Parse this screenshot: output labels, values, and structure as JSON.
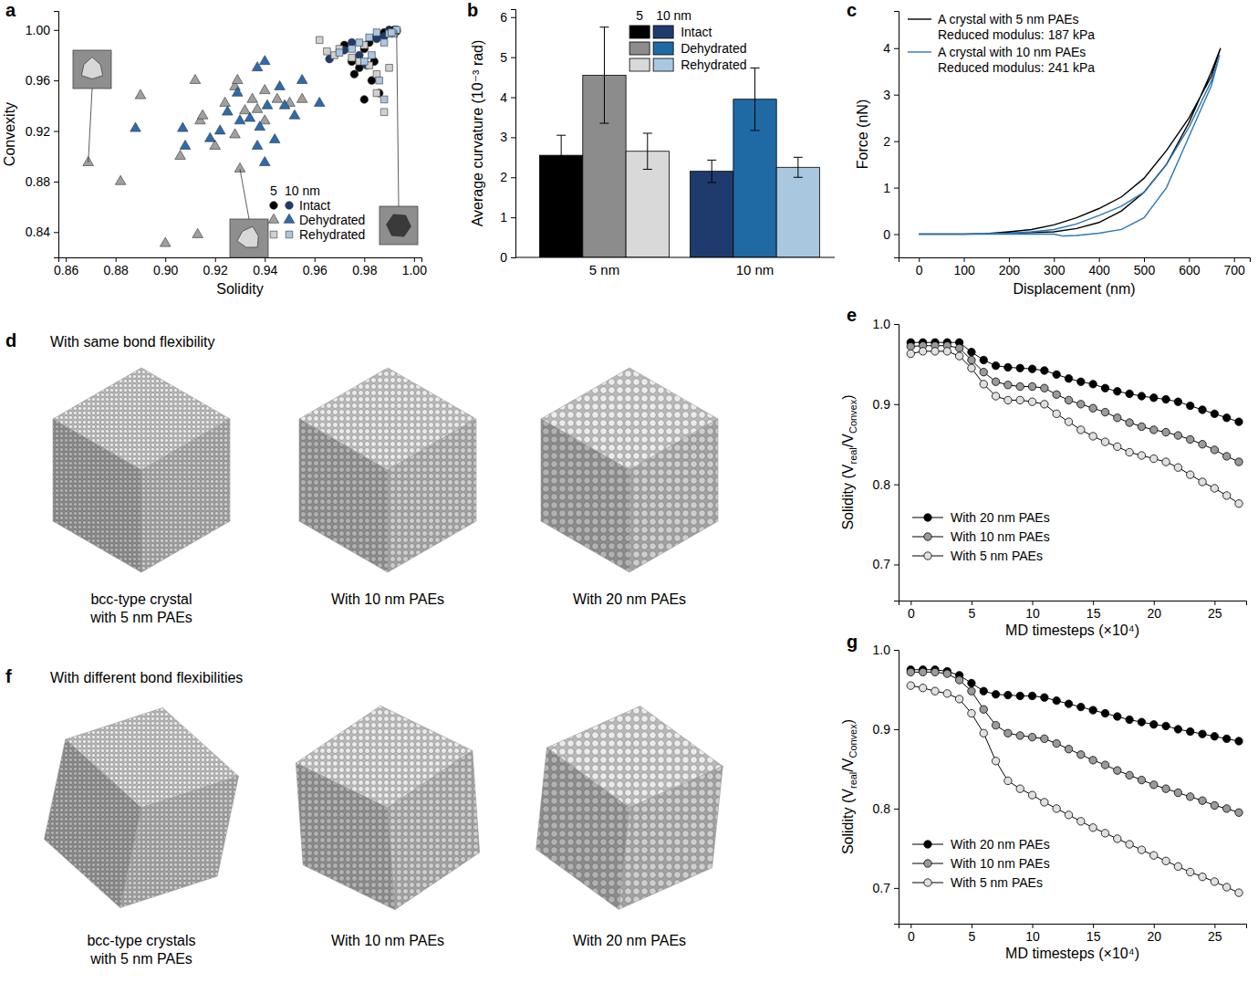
{
  "chart_data": [
    {
      "panel": "a",
      "type": "scatter",
      "x_label": "Solidity",
      "y_label": "Convexity",
      "xlim": [
        0.857,
        1.003
      ],
      "xticks": [
        0.86,
        0.88,
        {
          "value": 0.9,
          "label": "0.90"
        },
        0.92,
        0.94,
        0.96,
        0.98,
        {
          "value": 1,
          "label": "1.00"
        }
      ],
      "ylim": [
        0.82,
        1.015
      ],
      "yticks": [
        0.84,
        0.88,
        0.92,
        0.96,
        {
          "value": 1,
          "label": "1.00"
        }
      ],
      "legend": "bottom-right",
      "legend_columns": [
        "5",
        "10 nm"
      ],
      "series": [
        {
          "name": "Intact",
          "color": "#000000",
          "marker": "circle",
          "x": [
            0.972,
            0.975,
            0.978,
            0.98,
            0.982,
            0.985,
            0.988,
            0.99,
            0.992,
            0.993,
            0.976,
            0.983,
            0.986,
            0.98,
            0.984
          ],
          "values": [
            0.988,
            0.975,
            0.97,
            0.985,
            0.99,
            0.995,
            0.998,
            1.0,
            1.0,
            0.999,
            0.965,
            0.96,
            0.95,
            0.945,
            0.975
          ]
        },
        {
          "name": "Intact",
          "color": "#1f3b6e",
          "marker": "circle",
          "x": [
            0.966,
            0.972,
            0.975,
            0.978,
            0.985,
            0.99,
            0.993,
            0.981,
            0.988
          ],
          "values": [
            0.977,
            0.984,
            0.99,
            0.98,
            0.993,
            0.999,
            1.0,
            0.972,
            0.995
          ]
        },
        {
          "name": "Dehydrated",
          "color": "#a0a0a0",
          "marker": "triangle",
          "x": [
            0.869,
            0.882,
            0.89,
            0.9,
            0.906,
            0.912,
            0.913,
            0.914,
            0.915,
            0.92,
            0.924,
            0.928,
            0.929,
            0.93,
            0.932,
            0.935,
            0.94,
            0.94,
            0.945,
            0.95,
            0.955,
            0.928,
            0.937
          ],
          "values": [
            0.895,
            0.88,
            0.948,
            0.831,
            0.9,
            0.96,
            0.838,
            0.928,
            0.932,
            0.908,
            0.942,
            0.955,
            0.96,
            0.89,
            0.936,
            0.945,
            0.928,
            0.952,
            0.945,
            0.942,
            0.945,
            0.917,
            0.937
          ]
        },
        {
          "name": "Dehydrated",
          "color": "#2b6cb0",
          "marker": "triangle",
          "x": [
            0.888,
            0.907,
            0.908,
            0.918,
            0.922,
            0.925,
            0.93,
            0.934,
            0.937,
            0.938,
            0.94,
            0.941,
            0.944,
            0.946,
            0.948,
            0.952,
            0.955,
            0.962,
            0.94,
            0.937,
            0.929
          ],
          "values": [
            0.922,
            0.922,
            0.908,
            0.914,
            0.92,
            0.935,
            0.928,
            0.93,
            0.97,
            0.923,
            0.975,
            0.94,
            0.913,
            0.955,
            0.94,
            0.932,
            0.96,
            0.942,
            0.895,
            0.908,
            0.95
          ]
        },
        {
          "name": "Rehydrated",
          "color": "#d0d0d0",
          "marker": "square",
          "x": [
            0.962,
            0.965,
            0.968,
            0.975,
            0.978,
            0.982,
            0.985,
            0.988,
            0.99,
            0.985,
            0.992,
            0.97,
            0.98
          ],
          "values": [
            0.992,
            0.983,
            0.98,
            0.978,
            0.975,
            0.972,
            0.95,
            0.935,
            0.97,
            0.965,
            0.997,
            0.985,
            0.988
          ]
        },
        {
          "name": "Rehydrated",
          "color": "#a9c7e3",
          "marker": "square",
          "x": [
            0.97,
            0.975,
            0.978,
            0.982,
            0.985,
            0.988,
            0.99,
            0.993,
            0.98,
            0.986,
            0.988,
            0.983,
            0.991
          ],
          "values": [
            0.982,
            0.985,
            0.99,
            0.994,
            0.998,
            0.99,
            0.997,
            1.0,
            0.975,
            0.96,
            0.945,
            0.98,
            0.998
          ]
        }
      ]
    },
    {
      "panel": "b",
      "type": "bar",
      "y_label": "Average curvature (10⁻³ rad)",
      "categories": [
        "5 nm",
        "10 nm"
      ],
      "ylim": [
        0,
        6.2
      ],
      "yticks": [
        0,
        1,
        2,
        3,
        4,
        5,
        6
      ],
      "legend": "top-right",
      "legend_columns": [
        "5",
        "10 nm"
      ],
      "series": [
        {
          "name": "Intact",
          "colors": [
            "#000000",
            "#1f3b6e"
          ],
          "values": [
            2.55,
            2.15
          ],
          "errors": [
            0.5,
            0.28
          ]
        },
        {
          "name": "Dehydrated",
          "colors": [
            "#8c8c8c",
            "#1f6aa5"
          ],
          "values": [
            4.55,
            3.95
          ],
          "errors": [
            1.2,
            0.78
          ]
        },
        {
          "name": "Rehydrated",
          "colors": [
            "#d9d9d9",
            "#a9c8e0"
          ],
          "values": [
            2.65,
            2.25
          ],
          "errors": [
            0.45,
            0.25
          ]
        }
      ]
    },
    {
      "panel": "c",
      "type": "line",
      "x_label": "Displacement (nm)",
      "y_label": "Force (nN)",
      "xlim": [
        -45,
        735
      ],
      "xticks": [
        0,
        100,
        200,
        300,
        400,
        500,
        600,
        700
      ],
      "ylim": [
        -0.5,
        4.8
      ],
      "yticks": [
        0,
        1,
        2,
        3,
        4
      ],
      "legend": "top-left",
      "annotations": [
        "Reduced modulus: 187 kPa",
        "Reduced modulus: 241 kPa"
      ],
      "series": [
        {
          "name": "A crystal with 5 nm PAEs",
          "color": "#000000",
          "x": [
            0,
            100,
            150,
            200,
            250,
            300,
            350,
            400,
            450,
            500,
            550,
            600,
            650,
            670,
            650,
            600,
            550,
            500,
            450,
            400,
            350,
            300,
            200,
            100,
            0
          ],
          "values": [
            0,
            0,
            0.01,
            0.05,
            0.1,
            0.2,
            0.35,
            0.55,
            0.8,
            1.2,
            1.8,
            2.5,
            3.4,
            4.0,
            3.5,
            2.4,
            1.5,
            0.9,
            0.5,
            0.25,
            0.12,
            0.05,
            0.02,
            0,
            0
          ]
        },
        {
          "name": "A crystal with 10 nm PAEs",
          "color": "#2a78b8",
          "x": [
            0,
            100,
            200,
            250,
            300,
            350,
            400,
            450,
            500,
            550,
            600,
            650,
            668,
            650,
            600,
            550,
            500,
            450,
            400,
            350,
            320,
            300,
            200,
            100,
            0
          ],
          "values": [
            0,
            0,
            0.02,
            0.05,
            0.1,
            0.22,
            0.4,
            0.6,
            0.9,
            1.5,
            2.3,
            3.3,
            3.85,
            3.2,
            2.1,
            1.0,
            0.35,
            0.1,
            0.02,
            -0.03,
            -0.04,
            0,
            0,
            0,
            0
          ]
        }
      ]
    },
    {
      "panel": "d",
      "type": "image",
      "title": "With same bond flexibility",
      "captions": [
        [
          "bcc-type crystal",
          "with 5 nm PAEs"
        ],
        [
          "With 10 nm PAEs"
        ],
        [
          "With 20 nm PAEs"
        ]
      ]
    },
    {
      "panel": "e",
      "type": "line",
      "x_label": [
        "MD timesteps (×10⁴)"
      ],
      "y_label": [
        "Solidity (V",
        "real",
        "/V",
        "Convex",
        ")"
      ],
      "xlim": [
        -1,
        27.6
      ],
      "xticks": [
        0,
        5,
        10,
        15,
        20,
        25
      ],
      "ylim": [
        0.655,
        1.0
      ],
      "yticks": [
        0.7,
        0.8,
        0.9,
        {
          "value": 1,
          "label": "1.0"
        }
      ],
      "legend": "bottom-left",
      "marker": "circle",
      "x": [
        0,
        1,
        2,
        3,
        4,
        5,
        6,
        7,
        8,
        9,
        10,
        11,
        12,
        13,
        14,
        15,
        16,
        17,
        18,
        19,
        20,
        21,
        22,
        23,
        24,
        25,
        26,
        27
      ],
      "series": [
        {
          "name": "With 20 nm PAEs",
          "color": "#000000",
          "values": [
            0.977,
            0.977,
            0.977,
            0.977,
            0.977,
            0.965,
            0.955,
            0.948,
            0.946,
            0.945,
            0.944,
            0.942,
            0.937,
            0.932,
            0.928,
            0.925,
            0.92,
            0.916,
            0.913,
            0.91,
            0.908,
            0.906,
            0.903,
            0.898,
            0.893,
            0.888,
            0.883,
            0.878
          ]
        },
        {
          "name": "With 10 nm PAEs",
          "color": "#9a9a9a",
          "values": [
            0.972,
            0.973,
            0.973,
            0.973,
            0.97,
            0.955,
            0.94,
            0.928,
            0.924,
            0.922,
            0.922,
            0.92,
            0.912,
            0.905,
            0.9,
            0.895,
            0.89,
            0.883,
            0.877,
            0.872,
            0.868,
            0.865,
            0.861,
            0.856,
            0.85,
            0.843,
            0.835,
            0.828
          ]
        },
        {
          "name": "With 5 nm PAEs",
          "color": "#e0e0e0",
          "values": [
            0.963,
            0.966,
            0.966,
            0.966,
            0.96,
            0.945,
            0.925,
            0.91,
            0.905,
            0.905,
            0.903,
            0.9,
            0.888,
            0.878,
            0.868,
            0.86,
            0.853,
            0.847,
            0.84,
            0.836,
            0.832,
            0.828,
            0.821,
            0.812,
            0.803,
            0.795,
            0.786,
            0.776
          ]
        }
      ]
    },
    {
      "panel": "f",
      "type": "image",
      "title": "With different bond flexibilities",
      "captions": [
        [
          "bcc-type crystals",
          "with 5 nm PAEs"
        ],
        [
          "With 10 nm PAEs"
        ],
        [
          "With 20 nm PAEs"
        ]
      ]
    },
    {
      "panel": "g",
      "type": "line",
      "x_label": [
        "MD timesteps (×10⁴)"
      ],
      "y_label": [
        "Solidity (V",
        "real",
        "/V",
        "Convex",
        ")"
      ],
      "xlim": [
        -1,
        27.6
      ],
      "xticks": [
        0,
        5,
        10,
        15,
        20,
        25
      ],
      "ylim": [
        0.655,
        1.0
      ],
      "yticks": [
        0.7,
        0.8,
        0.9,
        {
          "value": 1,
          "label": "1.0"
        }
      ],
      "legend": "bottom-left",
      "marker": "circle",
      "x": [
        0,
        1,
        2,
        3,
        4,
        5,
        6,
        7,
        8,
        9,
        10,
        11,
        12,
        13,
        14,
        15,
        16,
        17,
        18,
        19,
        20,
        21,
        22,
        23,
        24,
        25,
        26,
        27
      ],
      "series": [
        {
          "name": "With 20 nm PAEs",
          "color": "#000000",
          "values": [
            0.975,
            0.975,
            0.975,
            0.973,
            0.968,
            0.958,
            0.948,
            0.944,
            0.943,
            0.942,
            0.942,
            0.94,
            0.936,
            0.932,
            0.928,
            0.924,
            0.92,
            0.916,
            0.912,
            0.909,
            0.906,
            0.904,
            0.9,
            0.897,
            0.894,
            0.891,
            0.888,
            0.885
          ]
        },
        {
          "name": "With 10 nm PAEs",
          "color": "#9a9a9a",
          "values": [
            0.972,
            0.972,
            0.972,
            0.97,
            0.962,
            0.948,
            0.925,
            0.905,
            0.895,
            0.892,
            0.89,
            0.888,
            0.882,
            0.875,
            0.868,
            0.861,
            0.855,
            0.848,
            0.842,
            0.836,
            0.83,
            0.825,
            0.82,
            0.815,
            0.81,
            0.804,
            0.8,
            0.795
          ]
        },
        {
          "name": "With 5 nm PAEs",
          "color": "#e0e0e0",
          "values": [
            0.955,
            0.952,
            0.948,
            0.945,
            0.938,
            0.92,
            0.895,
            0.86,
            0.835,
            0.825,
            0.817,
            0.808,
            0.8,
            0.792,
            0.784,
            0.776,
            0.769,
            0.762,
            0.755,
            0.748,
            0.741,
            0.734,
            0.727,
            0.72,
            0.714,
            0.708,
            0.701,
            0.694
          ]
        }
      ]
    }
  ]
}
